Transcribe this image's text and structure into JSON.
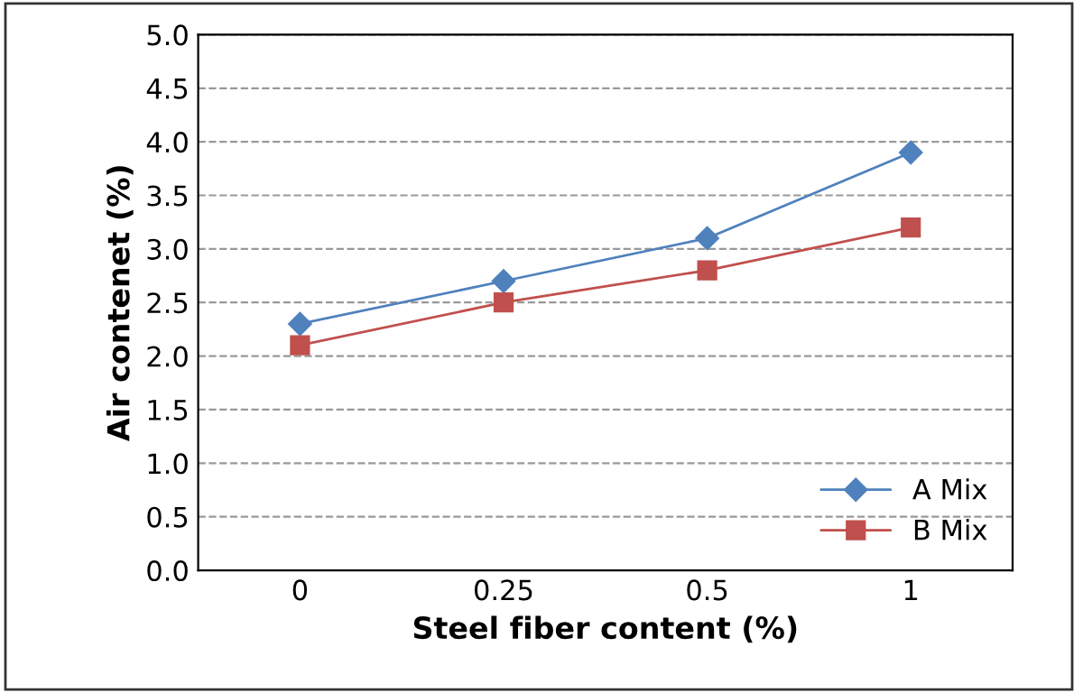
{
  "chart_data": {
    "type": "line",
    "xlabel": "Steel fiber content (%)",
    "ylabel": "Air contenet (%)",
    "categories": [
      "0",
      "0.25",
      "0.5",
      "1"
    ],
    "series": [
      {
        "name": "A Mix",
        "color": "#4f81bd",
        "marker": "diamond",
        "values": [
          2.3,
          2.7,
          3.1,
          3.9
        ]
      },
      {
        "name": "B Mix",
        "color": "#c0504d",
        "marker": "square",
        "values": [
          2.1,
          2.5,
          2.8,
          3.2
        ]
      }
    ],
    "ylim": [
      0,
      5
    ],
    "yticks": [
      {
        "value": 0,
        "label": "0.0"
      },
      0.5,
      {
        "value": 1,
        "label": "1.0"
      },
      1.5,
      {
        "value": 2,
        "label": "2.0"
      },
      2.5,
      {
        "value": 3,
        "label": "3.0"
      },
      3.5,
      {
        "value": 4,
        "label": "4.0"
      },
      4.5,
      {
        "value": 5,
        "label": "5.0"
      }
    ],
    "grid": "y",
    "legend": "bottom right",
    "line_style": "solid"
  }
}
